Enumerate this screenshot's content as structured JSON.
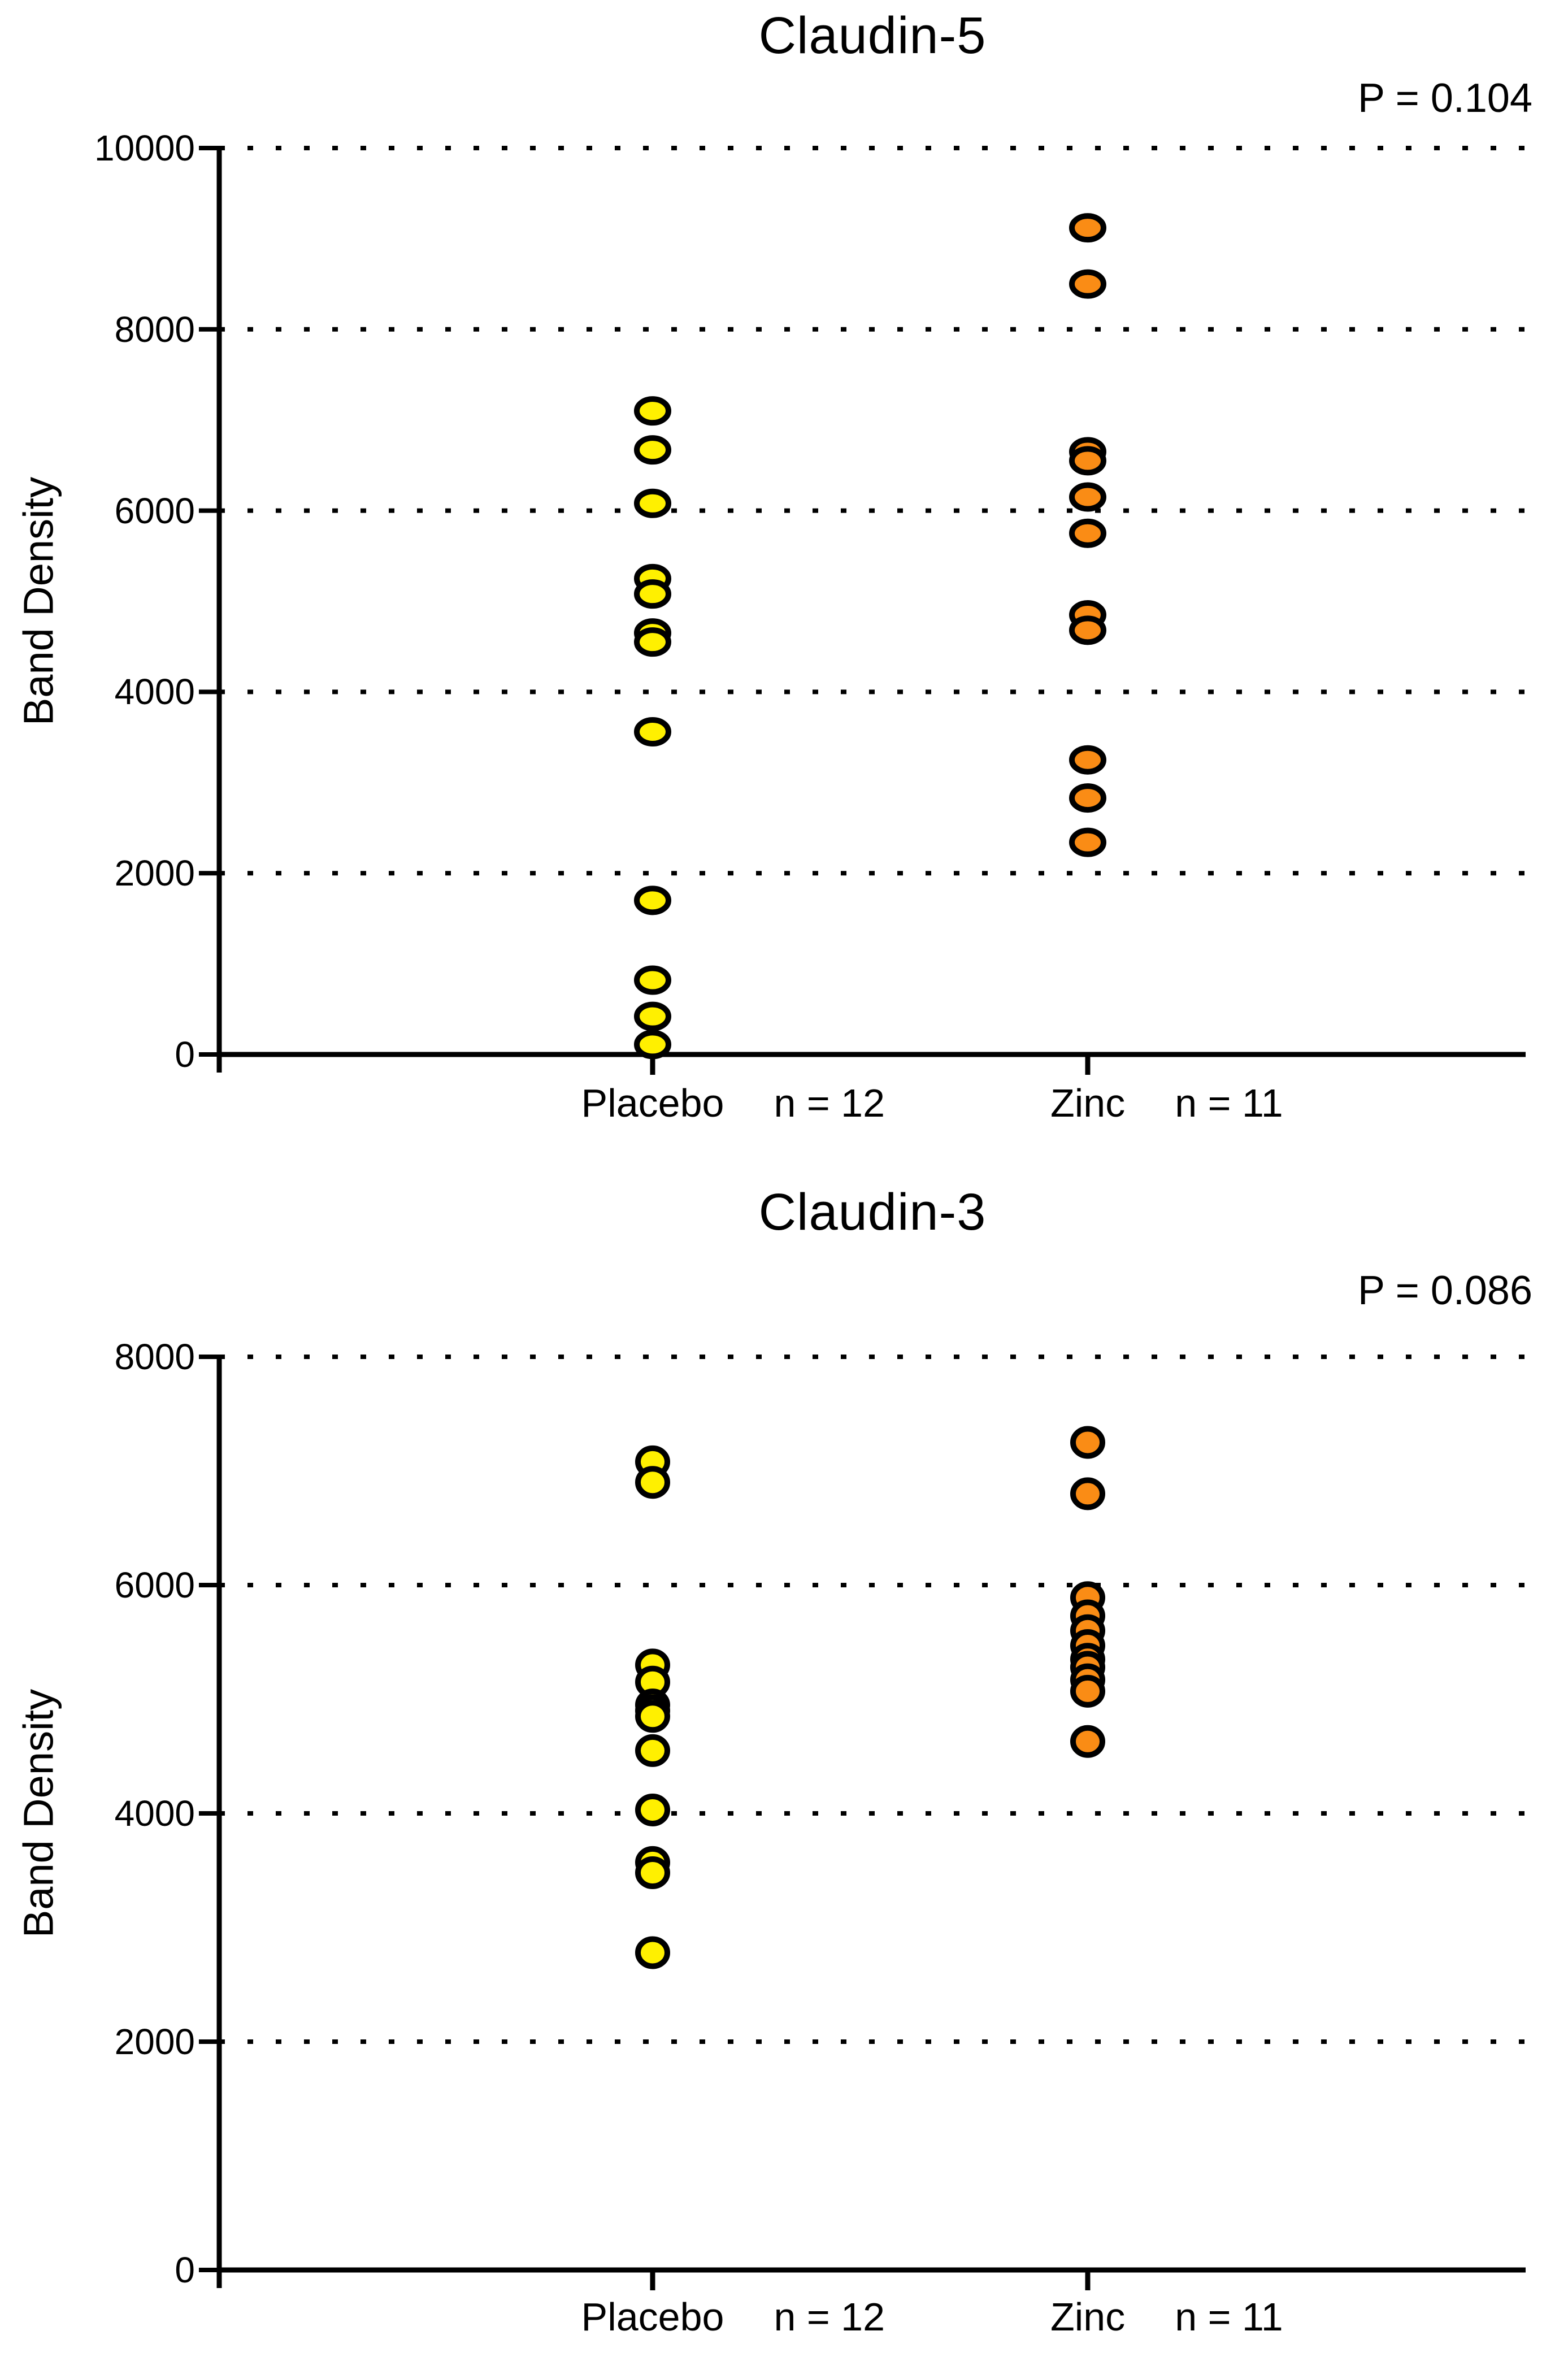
{
  "chart_data": [
    {
      "type": "scatter",
      "title": "Claudin-5",
      "p_label": "P = 0.104",
      "ylabel": "Band Density",
      "xlabel": "",
      "ylim": [
        0,
        10000
      ],
      "yticks": [
        0,
        2000,
        4000,
        6000,
        8000,
        10000
      ],
      "grid": "dotted-horizontal",
      "legend": "none",
      "marker_outline": "#000000",
      "series": [
        {
          "name": "Placebo",
          "n_label": "n = 12",
          "color": "#FFF000",
          "values": [
            7100,
            6670,
            6080,
            5250,
            5080,
            4650,
            4550,
            3560,
            1700,
            820,
            420,
            110
          ]
        },
        {
          "name": "Zinc",
          "n_label": "n = 11",
          "color": "#FA8C15",
          "values": [
            9120,
            8500,
            6650,
            6550,
            6150,
            5750,
            4850,
            4680,
            3250,
            2830,
            2340
          ]
        }
      ]
    },
    {
      "type": "scatter",
      "title": "Claudin-3",
      "p_label": "P = 0.086",
      "ylabel": "Band Density",
      "xlabel": "",
      "ylim": [
        0,
        8000
      ],
      "yticks": [
        0,
        2000,
        4000,
        6000,
        8000
      ],
      "grid": "dotted-horizontal",
      "legend": "none",
      "marker_outline": "#000000",
      "series": [
        {
          "name": "Placebo",
          "n_label": "n = 12",
          "color": "#FFF000",
          "values": [
            7080,
            6900,
            5300,
            5150,
            4950,
            4900,
            4850,
            4550,
            4030,
            3570,
            3480,
            2780
          ]
        },
        {
          "name": "Zinc",
          "n_label": "n = 11",
          "color": "#FA8C15",
          "values": [
            7250,
            6800,
            5890,
            5730,
            5600,
            5470,
            5350,
            5280,
            5170,
            5070,
            4630
          ]
        }
      ]
    }
  ],
  "figure": {
    "background": "#FFFFFF"
  }
}
